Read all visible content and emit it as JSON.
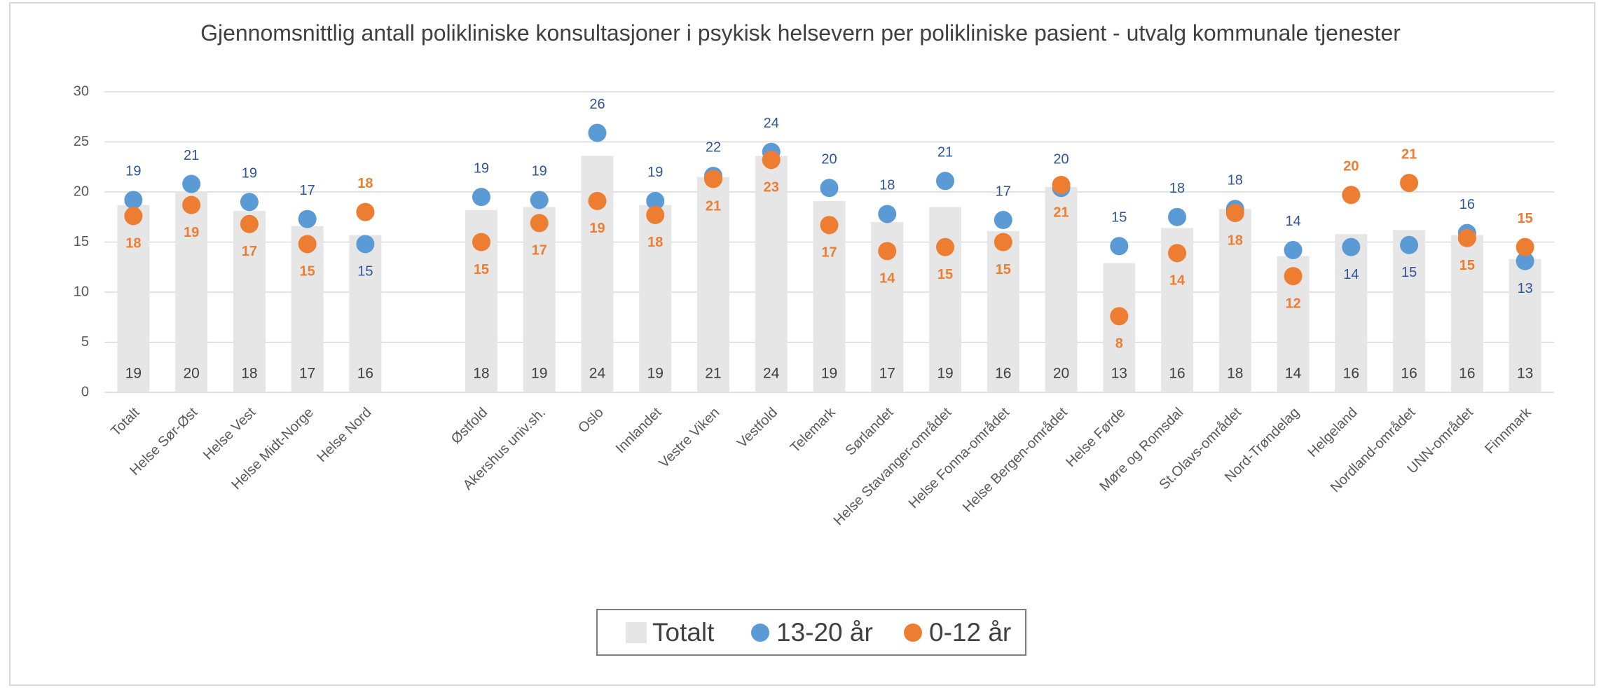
{
  "chart_data": {
    "type": "bar",
    "title": "Gjennomsnittlig antall polikliniske konsultasjoner i psykisk helsevern per polikliniske pasient - utvalg kommunale tjenester",
    "categories": [
      "Totalt",
      "Helse Sør-Øst",
      "Helse Vest",
      "Helse Midt-Norge",
      "Helse Nord",
      null,
      "Østfold",
      "Akershus univ.sh.",
      "Oslo",
      "Innlandet",
      "Vestre Viken",
      "Vestfold",
      "Telemark",
      "Sørlandet",
      "Helse Stavanger-området",
      "Helse Fonna-området",
      "Helse Bergen-området",
      "Helse Førde",
      "Møre og Romsdal",
      "St.Olavs-området",
      "Nord-Trøndelag",
      "Helgeland",
      "Nordland-området",
      "UNN-området",
      "Finnmark"
    ],
    "series": [
      {
        "name": "Totalt",
        "type": "bar",
        "color": "#e7e6e6",
        "values": [
          18.7,
          20,
          18.1,
          16.6,
          15.7,
          null,
          18.2,
          18.5,
          23.6,
          18.7,
          21.5,
          23.6,
          19.1,
          17,
          18.5,
          16.1,
          20.5,
          12.9,
          16.4,
          18.3,
          13.6,
          15.8,
          16.2,
          15.7,
          13.3
        ],
        "value_labels": [
          "19",
          "20",
          "18",
          "17",
          "16",
          null,
          "18",
          "19",
          "24",
          "19",
          "21",
          "24",
          "19",
          "17",
          "19",
          "16",
          "20",
          "13",
          "16",
          "18",
          "14",
          "16",
          "16",
          "16",
          "13"
        ]
      },
      {
        "name": "13-20 år",
        "type": "scatter",
        "color": "#5b9bd5",
        "values": [
          19.2,
          20.8,
          19,
          17.3,
          14.8,
          null,
          19.5,
          19.2,
          25.9,
          19.1,
          21.6,
          24,
          20.4,
          17.8,
          21.1,
          17.2,
          20.4,
          14.6,
          17.5,
          18.3,
          14.2,
          14.5,
          14.7,
          15.9,
          13.1
        ],
        "value_labels": [
          "19",
          "21",
          "19",
          "17",
          "15",
          null,
          "19",
          "19",
          "26",
          "19",
          "22",
          "24",
          "20",
          "18",
          "21",
          "17",
          "20",
          "15",
          "18",
          "18",
          "14",
          "14",
          "15",
          "16",
          "13"
        ]
      },
      {
        "name": "0-12 år",
        "type": "scatter",
        "color": "#ed7d31",
        "values": [
          17.6,
          18.7,
          16.8,
          14.8,
          18,
          null,
          15,
          16.9,
          19.1,
          17.7,
          21.3,
          23.2,
          16.7,
          14.1,
          14.5,
          15,
          20.7,
          7.6,
          13.9,
          17.9,
          11.6,
          19.7,
          20.9,
          15.4,
          14.5
        ],
        "value_labels": [
          "18",
          "19",
          "17",
          "15",
          "18",
          null,
          "15",
          "17",
          "19",
          "18",
          "21",
          "23",
          "17",
          "14",
          "15",
          "15",
          "21",
          "8",
          "14",
          "18",
          "12",
          "20",
          "21",
          "15",
          "15"
        ]
      }
    ],
    "ylim": [
      0,
      30
    ],
    "yticks": [
      0,
      5,
      10,
      15,
      20,
      25,
      30
    ],
    "grid": true,
    "legend": "bottom"
  }
}
